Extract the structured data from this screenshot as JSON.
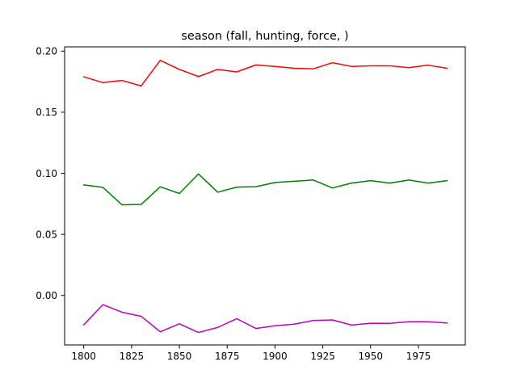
{
  "chart_data": {
    "type": "line",
    "title": "season (fall, hunting, force, )",
    "xlabel": "",
    "ylabel": "",
    "xlim": [
      1790,
      1999.5
    ],
    "ylim": [
      -0.0405,
      0.2035
    ],
    "x_ticks": [
      1800,
      1825,
      1850,
      1875,
      1900,
      1925,
      1950,
      1975
    ],
    "x_tick_labels": [
      "1800",
      "1825",
      "1850",
      "1875",
      "1900",
      "1925",
      "1950",
      "1975"
    ],
    "y_ticks": [
      0.0,
      0.05,
      0.1,
      0.15,
      0.2
    ],
    "y_tick_labels": [
      "0.00",
      "0.05",
      "0.10",
      "0.15",
      "0.20"
    ],
    "grid": false,
    "x": [
      1800,
      1810,
      1820,
      1830,
      1840,
      1850,
      1860,
      1870,
      1880,
      1890,
      1900,
      1910,
      1920,
      1930,
      1940,
      1950,
      1960,
      1970,
      1980,
      1990
    ],
    "series": [
      {
        "color": "#ff0000",
        "values": [
          0.179,
          0.1743,
          0.176,
          0.1715,
          0.1925,
          0.185,
          0.1792,
          0.185,
          0.183,
          0.1887,
          0.1875,
          0.186,
          0.1855,
          0.1905,
          0.1875,
          0.188,
          0.188,
          0.1865,
          0.1885,
          0.186
        ]
      },
      {
        "color": "#008000",
        "values": [
          0.0905,
          0.0885,
          0.0742,
          0.0745,
          0.089,
          0.0835,
          0.0995,
          0.0845,
          0.0887,
          0.089,
          0.0925,
          0.0935,
          0.0945,
          0.088,
          0.092,
          0.094,
          0.092,
          0.0945,
          0.092,
          0.094
        ]
      },
      {
        "color": "#bf00bf",
        "values": [
          -0.024,
          -0.0075,
          -0.0137,
          -0.017,
          -0.0297,
          -0.0232,
          -0.0303,
          -0.0262,
          -0.019,
          -0.027,
          -0.0248,
          -0.0235,
          -0.0205,
          -0.02,
          -0.0242,
          -0.0227,
          -0.0228,
          -0.0215,
          -0.0215,
          -0.0225
        ]
      }
    ]
  }
}
